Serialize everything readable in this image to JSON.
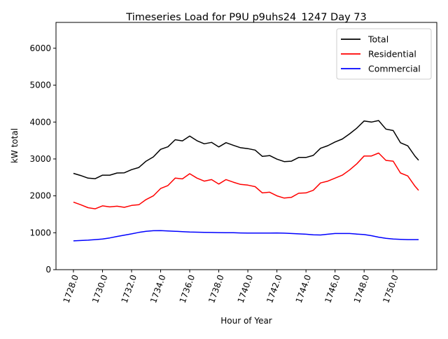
{
  "chart_data": {
    "type": "line",
    "title": "Timeseries Load for P9U p9uhs24_1247  Day 73",
    "xlabel": "Hour of Year",
    "ylabel": "kW total",
    "xlim": [
      1726.8,
      1753.0
    ],
    "ylim": [
      0,
      6700
    ],
    "grid": false,
    "legend_position": "top-right",
    "xticks": [
      "1728.0",
      "1730.0",
      "1732.0",
      "1734.0",
      "1736.0",
      "1738.0",
      "1740.0",
      "1742.0",
      "1744.0",
      "1746.0",
      "1748.0",
      "1750.0"
    ],
    "yticks": [
      "0",
      "1000",
      "2000",
      "3000",
      "4000",
      "5000",
      "6000"
    ],
    "x": [
      1728,
      1728.5,
      1729,
      1729.5,
      1730,
      1730.5,
      1731,
      1731.5,
      1732,
      1732.5,
      1733,
      1733.5,
      1734,
      1734.5,
      1735,
      1735.5,
      1736,
      1736.5,
      1737,
      1737.5,
      1738,
      1738.5,
      1739,
      1739.5,
      1740,
      1740.5,
      1741,
      1741.5,
      1742,
      1742.5,
      1743,
      1743.5,
      1744,
      1744.5,
      1745,
      1745.5,
      1746,
      1746.5,
      1747,
      1747.5,
      1748,
      1748.5,
      1749,
      1749.5,
      1750,
      1750.5,
      1751,
      1751.5,
      1751.75
    ],
    "series": [
      {
        "name": "Total",
        "color": "#000000",
        "values": [
          2610,
          2550,
          2480,
          2465,
          2560,
          2560,
          2620,
          2625,
          2710,
          2770,
          2940,
          3055,
          3260,
          3330,
          3520,
          3490,
          3620,
          3495,
          3410,
          3448,
          3325,
          3442,
          3370,
          3305,
          3280,
          3240,
          3070,
          3092,
          2995,
          2928,
          2940,
          3040,
          3040,
          3095,
          3290,
          3360,
          3460,
          3540,
          3680,
          3835,
          4030,
          4000,
          4040,
          3810,
          3770,
          3440,
          3355,
          3075,
          2965
        ]
      },
      {
        "name": "Residential",
        "color": "#ff0000",
        "values": [
          1830,
          1760,
          1680,
          1650,
          1730,
          1700,
          1720,
          1690,
          1740,
          1760,
          1900,
          2000,
          2200,
          2280,
          2480,
          2460,
          2600,
          2480,
          2400,
          2440,
          2320,
          2440,
          2370,
          2310,
          2290,
          2250,
          2080,
          2100,
          2000,
          1940,
          1960,
          2070,
          2080,
          2150,
          2350,
          2400,
          2480,
          2560,
          2700,
          2870,
          3080,
          3080,
          3160,
          2960,
          2940,
          2620,
          2540,
          2260,
          2150
        ]
      },
      {
        "name": "Commercial",
        "color": "#0000ff",
        "values": [
          780,
          790,
          800,
          815,
          830,
          860,
          900,
          935,
          970,
          1010,
          1040,
          1055,
          1060,
          1050,
          1040,
          1030,
          1020,
          1015,
          1010,
          1008,
          1005,
          1002,
          1000,
          995,
          990,
          990,
          990,
          992,
          995,
          988,
          980,
          970,
          960,
          945,
          940,
          960,
          980,
          980,
          980,
          965,
          950,
          920,
          880,
          850,
          830,
          820,
          815,
          815,
          815
        ]
      }
    ]
  }
}
